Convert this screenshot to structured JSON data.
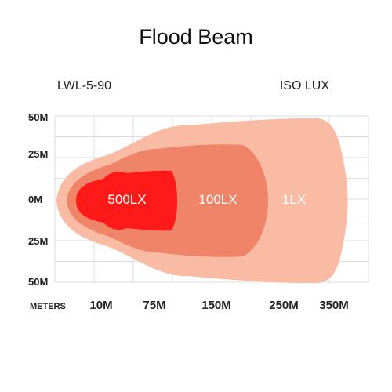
{
  "header": {
    "title": "Flood Beam",
    "model": "LWL-5-90",
    "standard": "ISO LUX"
  },
  "chart_data": {
    "type": "area",
    "title": "Flood Beam",
    "y_ticks": [
      "50M",
      "25M",
      "0M",
      "25M",
      "50M"
    ],
    "x_unit_label": "METERS",
    "x_ticks": [
      "10M",
      "75M",
      "150M",
      "250M",
      "350M"
    ],
    "grid": true,
    "zones": [
      {
        "label": "1LX",
        "color": "#f9bba4"
      },
      {
        "label": "100LX",
        "color": "#f08468"
      },
      {
        "label": "500LX",
        "color": "#ff1a1a"
      }
    ]
  }
}
